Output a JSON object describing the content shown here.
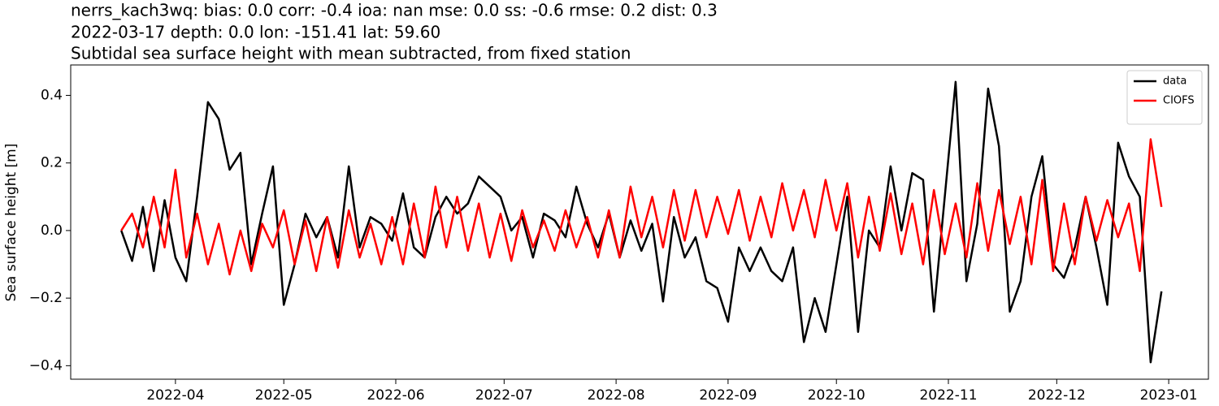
{
  "chart_data": {
    "type": "line",
    "title": [
      "nerrs_kach3wq: bias: 0.0  corr: -0.4  ioa: nan  mse: 0.0  ss: -0.6  rmse: 0.2  dist: 0.3",
      "2022-03-17 depth: 0.0 lon: -151.41 lat: 59.60",
      "Subtidal sea surface height with mean subtracted, from fixed station"
    ],
    "ylabel": "Sea surface height [m]",
    "x": [
      "2022-03-17",
      "2022-03-20",
      "2022-03-23",
      "2022-03-26",
      "2022-03-29",
      "2022-04-01",
      "2022-04-04",
      "2022-04-07",
      "2022-04-10",
      "2022-04-13",
      "2022-04-16",
      "2022-04-19",
      "2022-04-22",
      "2022-04-25",
      "2022-04-28",
      "2022-05-01",
      "2022-05-04",
      "2022-05-07",
      "2022-05-10",
      "2022-05-13",
      "2022-05-16",
      "2022-05-19",
      "2022-05-22",
      "2022-05-25",
      "2022-05-28",
      "2022-05-31",
      "2022-06-03",
      "2022-06-06",
      "2022-06-09",
      "2022-06-12",
      "2022-06-15",
      "2022-06-18",
      "2022-06-21",
      "2022-06-24",
      "2022-06-27",
      "2022-06-30",
      "2022-07-03",
      "2022-07-06",
      "2022-07-09",
      "2022-07-12",
      "2022-07-15",
      "2022-07-18",
      "2022-07-21",
      "2022-07-24",
      "2022-07-27",
      "2022-07-30",
      "2022-08-02",
      "2022-08-05",
      "2022-08-08",
      "2022-08-11",
      "2022-08-14",
      "2022-08-17",
      "2022-08-20",
      "2022-08-23",
      "2022-08-26",
      "2022-08-29",
      "2022-09-01",
      "2022-09-04",
      "2022-09-07",
      "2022-09-10",
      "2022-09-13",
      "2022-09-16",
      "2022-09-19",
      "2022-09-22",
      "2022-09-25",
      "2022-09-28",
      "2022-10-01",
      "2022-10-04",
      "2022-10-07",
      "2022-10-10",
      "2022-10-13",
      "2022-10-16",
      "2022-10-19",
      "2022-10-22",
      "2022-10-25",
      "2022-10-28",
      "2022-10-31",
      "2022-11-03",
      "2022-11-06",
      "2022-11-09",
      "2022-11-12",
      "2022-11-15",
      "2022-11-18",
      "2022-11-21",
      "2022-11-24",
      "2022-11-27",
      "2022-11-30",
      "2022-12-03",
      "2022-12-06",
      "2022-12-09",
      "2022-12-12",
      "2022-12-15",
      "2022-12-18",
      "2022-12-21",
      "2022-12-24",
      "2022-12-27",
      "2022-12-30"
    ],
    "series": [
      {
        "name": "data",
        "color": "#000000",
        "values": [
          0,
          -0.09,
          0.07,
          -0.12,
          0.09,
          -0.08,
          -0.15,
          0.1,
          0.38,
          0.33,
          0.18,
          0.23,
          -0.1,
          0.05,
          0.19,
          -0.22,
          -0.1,
          0.05,
          -0.02,
          0.04,
          -0.08,
          0.19,
          -0.05,
          0.04,
          0.02,
          -0.03,
          0.11,
          -0.05,
          -0.08,
          0.04,
          0.1,
          0.05,
          0.08,
          0.16,
          0.13,
          0.1,
          0,
          0.04,
          -0.08,
          0.05,
          0.03,
          -0.02,
          0.13,
          0.02,
          -0.05,
          0.05,
          -0.08,
          0.03,
          -0.06,
          0.02,
          -0.21,
          0.04,
          -0.08,
          -0.02,
          -0.15,
          -0.17,
          -0.27,
          -0.05,
          -0.12,
          -0.05,
          -0.12,
          -0.15,
          -0.05,
          -0.33,
          -0.2,
          -0.3,
          -0.1,
          0.1,
          -0.3,
          0,
          -0.05,
          0.19,
          0,
          0.17,
          0.15,
          -0.24,
          0.1,
          0.44,
          -0.15,
          0.02,
          0.42,
          0.25,
          -0.24,
          -0.15,
          0.1,
          0.22,
          -0.1,
          -0.14,
          -0.05,
          0.1,
          -0.05,
          -0.22,
          0.26,
          0.16,
          0.1,
          -0.39,
          -0.18
        ]
      },
      {
        "name": "CIOFS",
        "color": "#ff0000",
        "values": [
          0,
          0.05,
          -0.05,
          0.1,
          -0.05,
          0.18,
          -0.08,
          0.05,
          -0.1,
          0.02,
          -0.13,
          0,
          -0.12,
          0.02,
          -0.05,
          0.06,
          -0.1,
          0.03,
          -0.12,
          0.04,
          -0.11,
          0.06,
          -0.08,
          0.02,
          -0.1,
          0.04,
          -0.1,
          0.08,
          -0.08,
          0.13,
          -0.05,
          0.1,
          -0.06,
          0.08,
          -0.08,
          0.05,
          -0.09,
          0.06,
          -0.05,
          0.03,
          -0.06,
          0.06,
          -0.05,
          0.04,
          -0.08,
          0.06,
          -0.08,
          0.13,
          -0.02,
          0.1,
          -0.05,
          0.12,
          -0.03,
          0.12,
          -0.02,
          0.1,
          -0.01,
          0.12,
          -0.03,
          0.1,
          -0.02,
          0.14,
          0,
          0.12,
          -0.02,
          0.15,
          0,
          0.14,
          -0.08,
          0.1,
          -0.06,
          0.11,
          -0.07,
          0.08,
          -0.1,
          0.12,
          -0.07,
          0.08,
          -0.08,
          0.14,
          -0.06,
          0.12,
          -0.04,
          0.1,
          -0.1,
          0.15,
          -0.12,
          0.08,
          -0.1,
          0.1,
          -0.03,
          0.09,
          -0.02,
          0.08,
          -0.12,
          0.27,
          0.07
        ]
      }
    ],
    "xlim": [
      "2022-03-03",
      "2023-01-12"
    ],
    "xticks": [
      "2022-04",
      "2022-05",
      "2022-06",
      "2022-07",
      "2022-08",
      "2022-09",
      "2022-10",
      "2022-11",
      "2022-12",
      "2023-01"
    ],
    "ylim": [
      -0.44,
      0.49
    ],
    "yticks": [
      {
        "value": -0.4,
        "label": "−0.4"
      },
      {
        "value": -0.2,
        "label": "−0.2"
      },
      {
        "value": 0,
        "label": "0.0"
      },
      0.2,
      0.4
    ],
    "legend": "upper right"
  }
}
